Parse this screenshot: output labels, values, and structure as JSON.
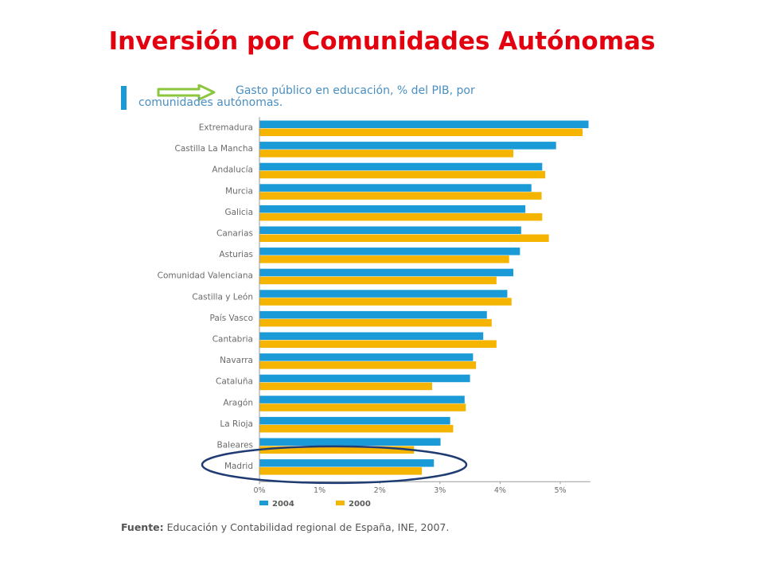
{
  "slide": {
    "title": "Inversión por Comunidades Autónomas"
  },
  "chart_header": {
    "line1": "Gasto público en educación, % del PIB, por",
    "line2": "comunidades autónomas."
  },
  "source": {
    "label": "Fuente:",
    "text": " Educación y Contabilidad regional de España, INE, 2007."
  },
  "colors": {
    "title": "#e3000f",
    "series_2004": "#1a9bd7",
    "series_2000": "#f5b400",
    "header_arrow": "#8cc63f",
    "highlight_ellipse": "#1f3b73"
  },
  "highlight": {
    "category": "Madrid"
  },
  "chart_data": {
    "type": "bar",
    "orientation": "horizontal",
    "categories": [
      "Extremadura",
      "Castilla La Mancha",
      "Andalucía",
      "Murcia",
      "Galicia",
      "Canarias",
      "Asturias",
      "Comunidad Valenciana",
      "Castilla y León",
      "País Vasco",
      "Cantabria",
      "Navarra",
      "Cataluña",
      "Aragón",
      "La Rioja",
      "Baleares",
      "Madrid"
    ],
    "series": [
      {
        "name": "2004",
        "values": [
          5.47,
          4.93,
          4.7,
          4.52,
          4.42,
          4.35,
          4.33,
          4.22,
          4.12,
          3.78,
          3.72,
          3.55,
          3.5,
          3.41,
          3.17,
          3.01,
          2.9
        ]
      },
      {
        "name": "2000",
        "values": [
          5.37,
          4.22,
          4.75,
          4.69,
          4.7,
          4.81,
          4.15,
          3.94,
          4.19,
          3.86,
          3.94,
          3.6,
          2.87,
          3.43,
          3.22,
          2.57,
          2.7
        ]
      }
    ],
    "xlim": [
      0,
      5.5
    ],
    "ticks": [
      "0%",
      "1%",
      "2%",
      "3%",
      "4%",
      "5%"
    ],
    "tick_values": [
      0,
      1,
      2,
      3,
      4,
      5
    ],
    "legend": [
      "2004",
      "2000"
    ],
    "legend_position": "bottom-left",
    "grid": false,
    "xlabel": "",
    "ylabel": ""
  }
}
